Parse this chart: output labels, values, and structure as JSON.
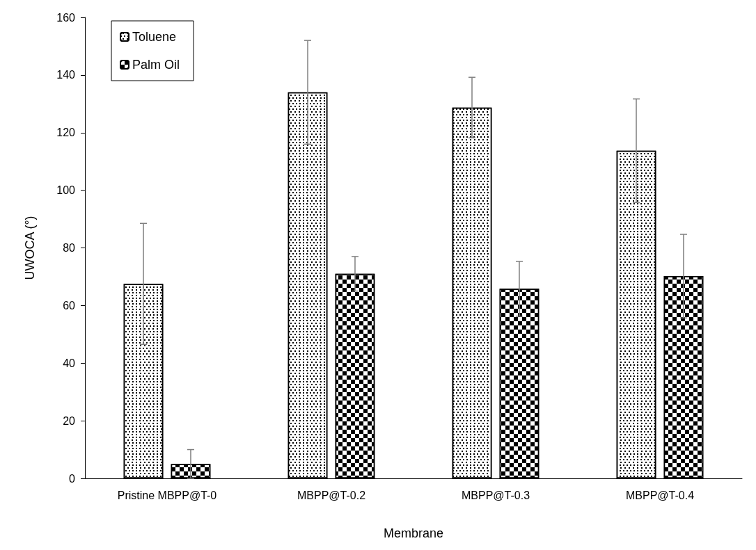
{
  "chart_data": {
    "type": "bar",
    "xlabel": "Membrane",
    "ylabel": "UWOCA (°)",
    "categories": [
      "Pristine MBPP@T-0",
      "MBPP@T-0.2",
      "MBPP@T-0.3",
      "MBPP@T-0.4"
    ],
    "series": [
      {
        "name": "Toluene",
        "color": "#000000",
        "values": [
          67.5,
          134,
          128.7,
          113.7
        ],
        "errors": [
          21,
          18,
          10.5,
          18
        ]
      },
      {
        "name": "Palm Oil",
        "color": "#000000",
        "values": [
          5,
          71,
          65.8,
          70.2
        ],
        "errors": [
          5,
          6,
          9.5,
          14.5
        ]
      }
    ],
    "ylim": [
      0,
      160
    ],
    "yticks": [
      0,
      20,
      40,
      60,
      80,
      100,
      120,
      140,
      160
    ],
    "grid": false,
    "legend": "top left"
  }
}
